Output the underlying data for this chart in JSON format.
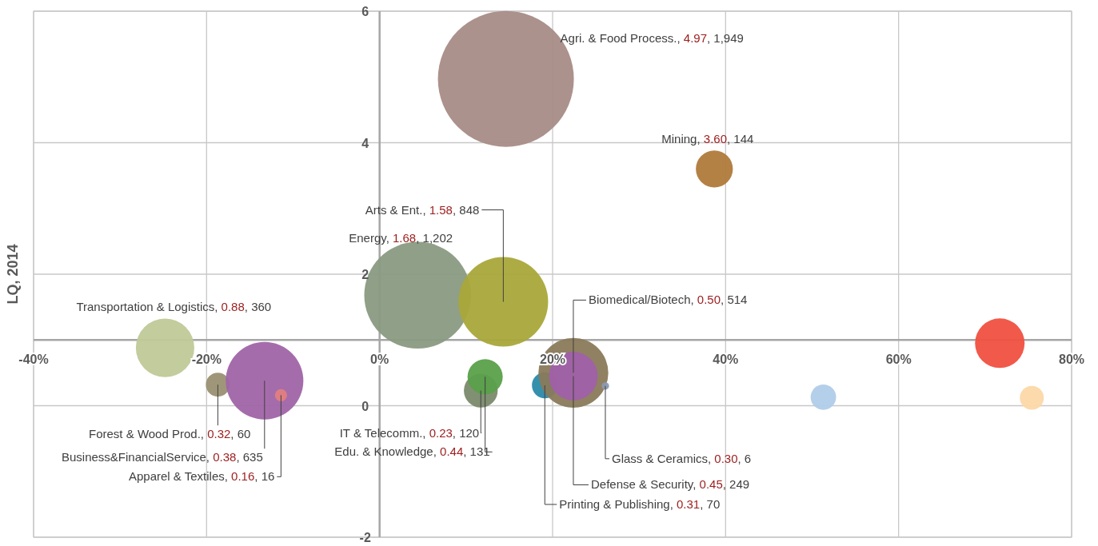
{
  "chart_data": {
    "type": "bubble",
    "ylabel": "LQ, 2014",
    "x": [
      14.6,
      38.7,
      4.4,
      14.3,
      -24.8,
      -18.7,
      -13.3,
      -11.4,
      11.7,
      12.2,
      19.1,
      22.4,
      22.4,
      26.1,
      71.7,
      51.3,
      75.4
    ],
    "values": [
      4.97,
      3.6,
      1.68,
      1.58,
      0.88,
      0.32,
      0.38,
      0.16,
      0.23,
      0.44,
      0.31,
      0.5,
      0.45,
      0.3,
      0.95,
      0.13,
      0.12
    ],
    "sizes": [
      1,
      0.074,
      0.617,
      0.435,
      0.185,
      0.031,
      0.326,
      0.008,
      0.062,
      0.067,
      0.036,
      0.264,
      0.128,
      0.003,
      0.133,
      0.035,
      0.031
    ],
    "colors": [
      "#a88c86",
      "#b07a3a",
      "#8a9a82",
      "#a9a83a",
      "#bfc998",
      "#9a9073",
      "#a064a6",
      "#e08080",
      "#7a8a6a",
      "#5aa04a",
      "#2a8aaa",
      "#8a7a5a",
      "#a060a8",
      "#8a9ab0",
      "#f05040",
      "#b0cce8",
      "#fcd8a8"
    ],
    "annotations": [
      "Agri. & Food Process., 4.97, 1,949",
      {
        "text": "Mining, 3.60, 144",
        "x": 38.7,
        "y": 3.6
      },
      "Energy, 1.68, 1,202",
      {
        "text": "Arts & Ent., 1.58, 848",
        "x": 14.3,
        "y": 1.58
      },
      {
        "text": "Transportation & Logistics, 0.88, 360",
        "x": -24.8,
        "y": 0.88
      },
      {
        "text": "Forest & Wood Prod., 0.32, 60",
        "x": -18.7,
        "y": 0.32
      },
      {
        "text": "Business&FinancialService, 0.38, 635",
        "x": -13.3,
        "y": 0.38
      },
      {
        "text": "Apparel & Textiles, 0.16, 16",
        "x": -11.4,
        "y": 0.16
      },
      {
        "text": "IT & Telecomm., 0.23, 120",
        "x": 11.7,
        "y": 0.23
      },
      {
        "text": "Edu. & Knowledge, 0.44, 131",
        "x": 12.2,
        "y": 0.44
      },
      {
        "text": "Printing & Publishing, 0.31, 70",
        "x": 19.1,
        "y": 0.31
      },
      {
        "text": "Biomedical/Biotech,  0.50, 514",
        "x": 22.4,
        "y": 0.5
      },
      {
        "text": "Defense & Security, 0.45, 249",
        "x": 22.4,
        "y": 0.45
      },
      {
        "text": "Glass & Ceramics, 0.30, 6",
        "x": 26.1,
        "y": 0.3
      }
    ],
    "xlim": [
      -40,
      80
    ],
    "xticks": [
      {
        "value": -40,
        "label": "-40%"
      },
      {
        "value": -20,
        "label": "-20%"
      },
      {
        "value": 0,
        "label": "0%"
      },
      {
        "value": 20,
        "label": "20%"
      },
      {
        "value": 40,
        "label": "40%"
      },
      {
        "value": 60,
        "label": "60%"
      },
      {
        "value": 80,
        "label": "80%"
      }
    ],
    "ylim": [
      -2,
      6
    ],
    "yticks": [
      -2,
      0,
      2,
      4,
      6
    ],
    "grid": true
  }
}
